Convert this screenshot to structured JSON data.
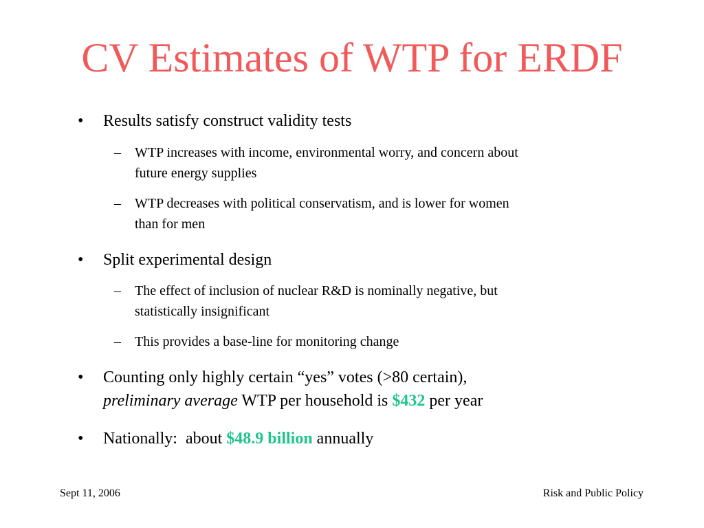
{
  "slide": {
    "title": "CV Estimates of WTP for ERDF",
    "accent_color": "#1ec48c",
    "title_color": "#f05a5a",
    "bullet_glyph": "•",
    "dash_glyph": "–",
    "bullets": [
      {
        "text": "Results satisfy construct validity tests",
        "subs": [
          {
            "line1": "WTP increases with income, environmental worry, and concern about",
            "line2": "future energy supplies"
          },
          {
            "line1": "WTP decreases with political conservatism, and is lower for women",
            "line2": "than for men"
          }
        ]
      },
      {
        "text": "Split experimental design",
        "subs": [
          {
            "line1": "The effect of inclusion of nuclear R&D is nominally negative, but",
            "line2": "statistically insignificant"
          },
          {
            "line1": "This provides a base-line for monitoring change"
          }
        ]
      },
      {
        "line1": "Counting only highly certain “yes” votes (>80 certain),",
        "line2_italic": "preliminary average",
        "line2_mid": " WTP per household is ",
        "line2_accent": "$432",
        "line2_end": " per year"
      },
      {
        "pre": "Nationally:  about ",
        "accent": "$48.9 billion",
        "post": " annually"
      }
    ]
  },
  "footer": {
    "date": "Sept 11, 2006",
    "course": "Risk and Public Policy"
  }
}
